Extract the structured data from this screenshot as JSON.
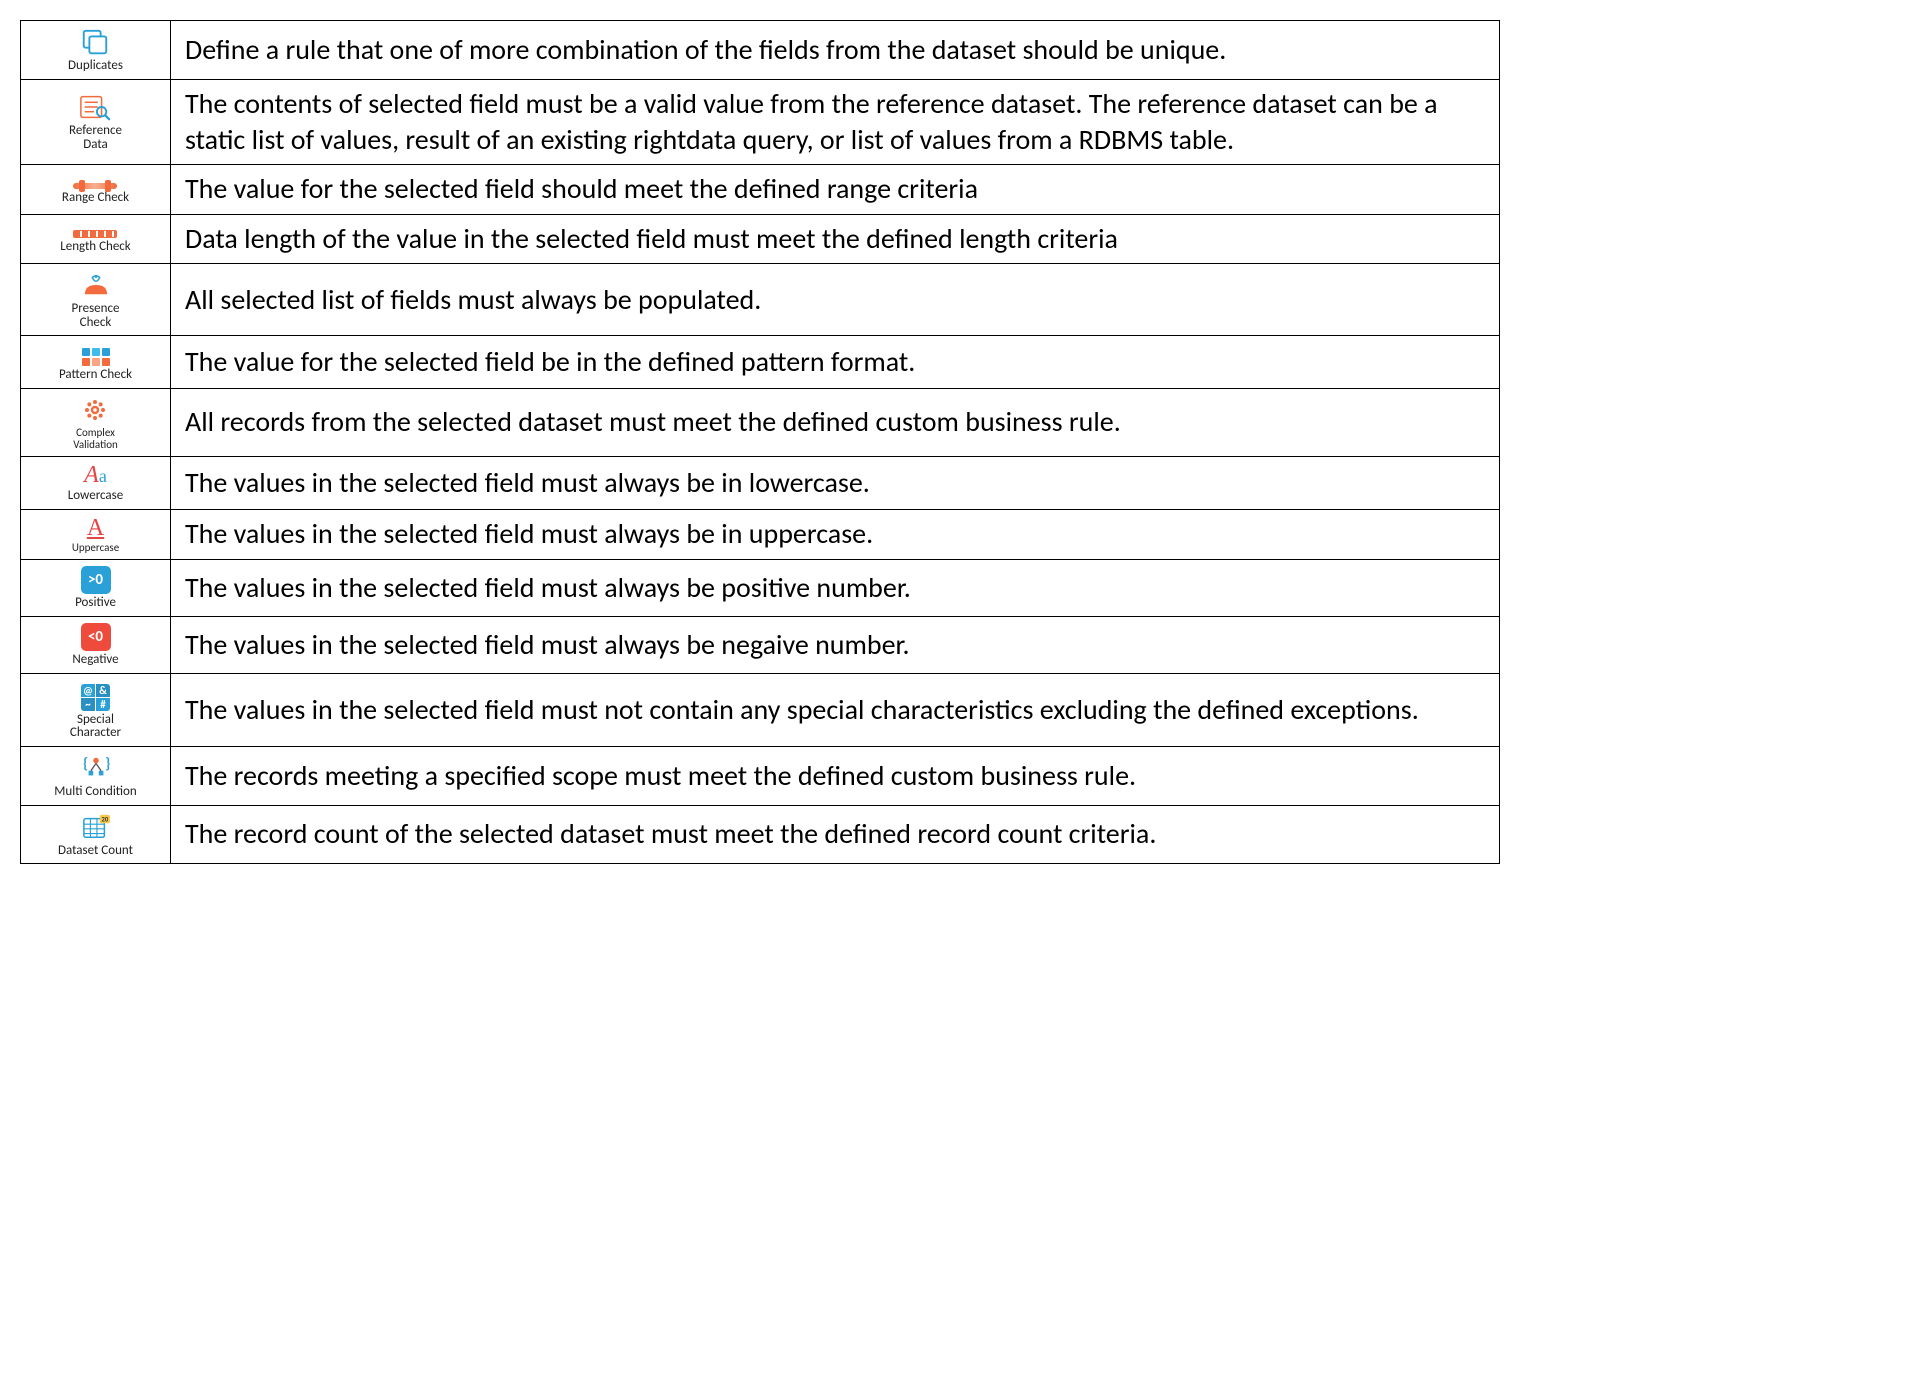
{
  "table": {
    "border_color": "#000000",
    "desc_font_size": 28,
    "desc_color": "#000000",
    "label_color": "#222222",
    "rows": [
      {
        "key": "duplicates",
        "label": "Duplicates",
        "description": "Define a rule that one of more combination of the fields from the dataset should be unique.",
        "icon_type": "svg-duplicates",
        "primary_color": "#2aa0d8"
      },
      {
        "key": "reference",
        "label": "Reference\nData",
        "description": "The contents of selected field must be a valid value from the reference dataset. The reference dataset can be a static list of values, result of an existing rightdata query, or list of values from a RDBMS table.",
        "icon_type": "svg-reference",
        "primary_color": "#f26a3d",
        "secondary_color": "#2aa0d8"
      },
      {
        "key": "range",
        "label": "Range Check",
        "description": "The value for the selected field should meet the defined range criteria",
        "icon_type": "range-bar",
        "primary_color": "#f26a3d"
      },
      {
        "key": "length",
        "label": "Length Check",
        "description": "Data length of the value in the selected field must meet the defined length criteria",
        "icon_type": "length-bar",
        "primary_color": "#f26a3d"
      },
      {
        "key": "presence",
        "label": "Presence\nCheck",
        "description": "All selected list of fields must always be populated.",
        "icon_type": "svg-presence",
        "primary_color": "#f26a3d",
        "secondary_color": "#2aa0d8"
      },
      {
        "key": "pattern",
        "label": "Pattern Check",
        "description": "The value for the selected field be in the defined pattern format.",
        "icon_type": "pattern-grid",
        "cells": [
          "#2aa0d8",
          "#3bbced",
          "#2aa0d8",
          "#f26a3d",
          "#f7a583",
          "#f26a3d"
        ]
      },
      {
        "key": "complex",
        "label": "Complex\nValidation",
        "label_small": true,
        "description": "All records from the selected dataset must meet the defined custom business rule.",
        "icon_type": "svg-gear",
        "primary_color": "#f26a3d"
      },
      {
        "key": "lowercase",
        "label": "Lowercase",
        "description": "The values in the selected field must always be in lowercase.",
        "icon_type": "aa-lower",
        "primary_color": "#e64545",
        "secondary_color": "#2aa0d8"
      },
      {
        "key": "uppercase",
        "label": "Uppercase",
        "label_small": true,
        "description": "The values in the selected field must always be in uppercase.",
        "icon_type": "aa-upper",
        "primary_color": "#e64545"
      },
      {
        "key": "positive",
        "label": "Positive",
        "description": "The values in the selected field must always be positive number.",
        "icon_type": "badge",
        "badge_text": ">0",
        "badge_bg": "#2aa0d8"
      },
      {
        "key": "negative",
        "label": "Negative",
        "description": "The values in the selected field must always be negaive number.",
        "icon_type": "badge",
        "badge_text": "<0",
        "badge_bg": "#ef4b3c"
      },
      {
        "key": "special",
        "label": "Special\nCharacter",
        "description": "The values in the selected field must not contain any special characteristics excluding the defined exceptions.",
        "icon_type": "special-badge",
        "cells_bg": [
          "#2aa0d8",
          "#2a8fc2",
          "#2a8fc2",
          "#2aa0d8"
        ],
        "cells_text": [
          "@",
          "&",
          "~",
          "#"
        ]
      },
      {
        "key": "multi",
        "label": "Multi Condition",
        "description": "The records meeting a specified scope must meet the defined custom business rule.",
        "icon_type": "svg-multi",
        "primary_color": "#2aa0d8",
        "secondary_color": "#f26a3d"
      },
      {
        "key": "dataset",
        "label": "Dataset Count",
        "description": "The record count of the selected dataset must meet the defined record count criteria.",
        "icon_type": "svg-dataset",
        "primary_color": "#2aa0d8",
        "secondary_color": "#f7c948"
      }
    ]
  }
}
